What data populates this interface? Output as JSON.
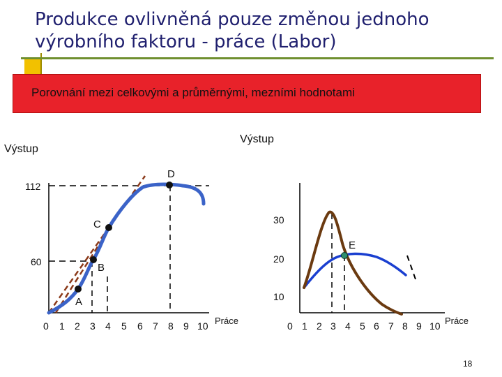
{
  "title": {
    "line1": "Produkce ovlivněná pouze změnou jednoho",
    "line2": "výrobního faktoru - práce (Labor)"
  },
  "banner": {
    "text": "Porovnání mezi celkovými a průměrnými, mezními hodnotami"
  },
  "left_chart": {
    "ylabel": "Výstup",
    "xlabel": "Práce",
    "x_ticks": [
      "0",
      "1",
      "2",
      "3",
      "4",
      "5",
      "6",
      "7",
      "8",
      "9",
      "10"
    ],
    "y_ticks": [
      "112",
      "60"
    ],
    "points": [
      {
        "label": "A",
        "labor": 2,
        "output": 27
      },
      {
        "label": "B",
        "labor": 3,
        "output": 60
      },
      {
        "label": "C",
        "labor": 4,
        "output": 80
      },
      {
        "label": "D",
        "labor": 8,
        "output": 112
      }
    ],
    "total_product_curve": [
      [
        0,
        0
      ],
      [
        1,
        11
      ],
      [
        2,
        27
      ],
      [
        3,
        60
      ],
      [
        4,
        80
      ],
      [
        5,
        97
      ],
      [
        6,
        108
      ],
      [
        7,
        112
      ],
      [
        8,
        112
      ],
      [
        9,
        111
      ],
      [
        10,
        102
      ]
    ]
  },
  "right_chart": {
    "ylabel": "Výstup",
    "xlabel": "Práce",
    "x_ticks": [
      "0",
      "1",
      "2",
      "3",
      "4",
      "5",
      "6",
      "7",
      "8",
      "9",
      "10"
    ],
    "y_ticks": [
      "30",
      "20",
      "10"
    ],
    "point": {
      "label": "E",
      "labor": 4,
      "output": 20
    },
    "average_product_curve": [
      [
        1,
        11
      ],
      [
        2,
        16
      ],
      [
        3,
        19
      ],
      [
        4,
        20
      ],
      [
        5,
        20
      ],
      [
        6,
        19
      ],
      [
        7,
        17
      ],
      [
        8,
        15
      ]
    ],
    "marginal_product_curve": [
      [
        1,
        11
      ],
      [
        2,
        21
      ],
      [
        3,
        33
      ],
      [
        4,
        20
      ],
      [
        5,
        17
      ],
      [
        6,
        11
      ],
      [
        7,
        5
      ],
      [
        8,
        0
      ]
    ]
  },
  "page_number": "18",
  "colors": {
    "curve": "#3b63c8",
    "marginal": "#6b3a10",
    "tangent": "#8b3a1a",
    "banner": "#e8222a",
    "title": "#1f1f6e"
  }
}
